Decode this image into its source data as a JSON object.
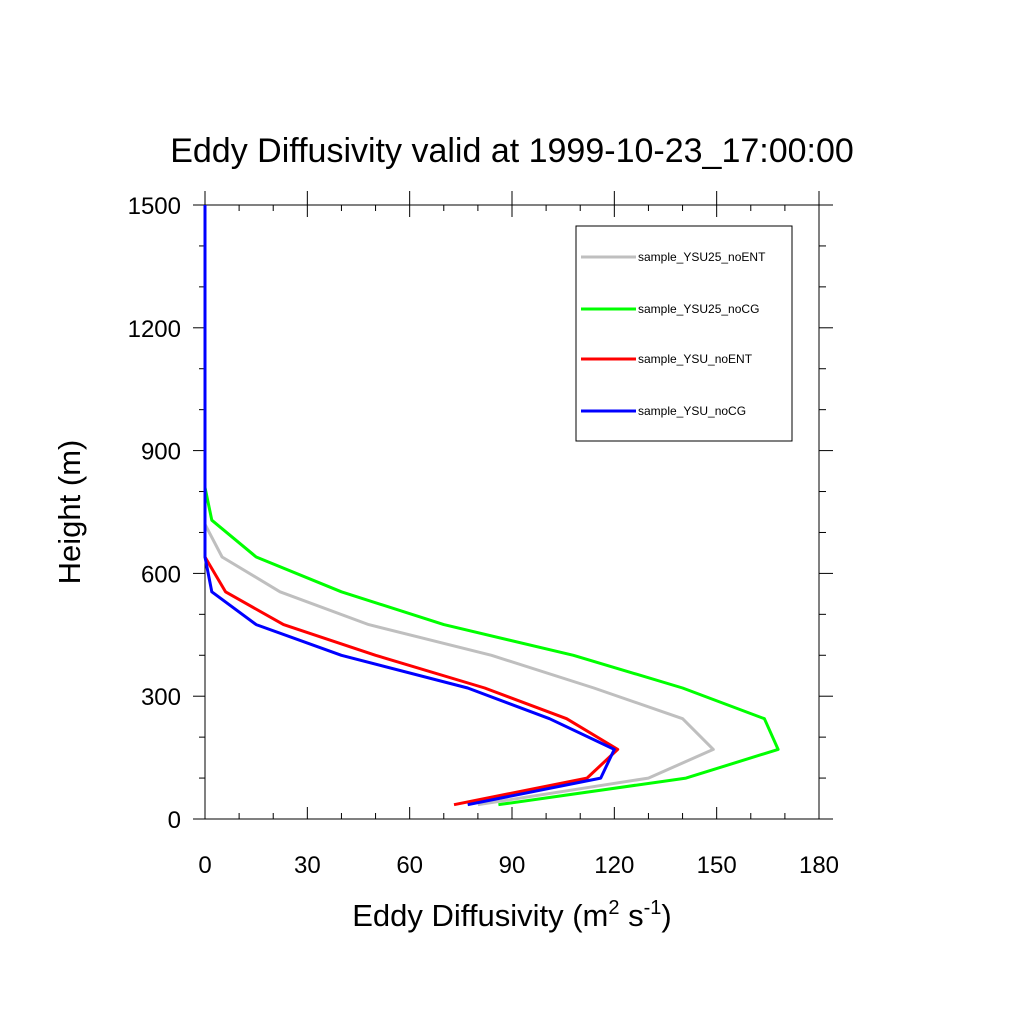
{
  "chart_data": {
    "type": "line",
    "title": "Eddy Diffusivity valid at 1999-10-23_17:00:00",
    "xlabel": "Eddy Diffusivity (m",
    "xlabel_sup1": "2",
    "xlabel_mid": " s",
    "xlabel_sup2": "-1",
    "xlabel_end": ")",
    "ylabel": "Height (m)",
    "xlim": [
      0,
      180
    ],
    "ylim": [
      0,
      1500
    ],
    "x_ticks": [
      "0",
      "30",
      "60",
      "90",
      "120",
      "150",
      "180"
    ],
    "y_ticks": [
      "0",
      "300",
      "600",
      "900",
      "1200",
      "1500"
    ],
    "legend_position": "top-right",
    "series": [
      {
        "name": "sample_YSU25_noENT",
        "color": "#bfbfbf",
        "points": [
          [
            80,
            35
          ],
          [
            130,
            100
          ],
          [
            149,
            170
          ],
          [
            140,
            245
          ],
          [
            114,
            320
          ],
          [
            84,
            400
          ],
          [
            48,
            475
          ],
          [
            22,
            555
          ],
          [
            5,
            640
          ],
          [
            0,
            720
          ],
          [
            0,
            800
          ],
          [
            0,
            1500
          ]
        ]
      },
      {
        "name": "sample_YSU25_noCG",
        "color": "#00ff00",
        "points": [
          [
            86,
            35
          ],
          [
            141,
            100
          ],
          [
            168,
            170
          ],
          [
            164,
            245
          ],
          [
            140,
            320
          ],
          [
            108,
            400
          ],
          [
            70,
            475
          ],
          [
            40,
            555
          ],
          [
            15,
            640
          ],
          [
            2,
            730
          ],
          [
            0,
            810
          ],
          [
            0,
            1500
          ]
        ]
      },
      {
        "name": "sample_YSU_noENT",
        "color": "#ff0000",
        "points": [
          [
            73,
            35
          ],
          [
            112,
            100
          ],
          [
            121,
            170
          ],
          [
            106,
            245
          ],
          [
            82,
            320
          ],
          [
            50,
            400
          ],
          [
            23,
            475
          ],
          [
            6,
            555
          ],
          [
            0,
            640
          ],
          [
            0,
            720
          ],
          [
            0,
            1500
          ]
        ]
      },
      {
        "name": "sample_YSU_noCG",
        "color": "#0000ff",
        "points": [
          [
            77,
            35
          ],
          [
            116,
            100
          ],
          [
            120,
            170
          ],
          [
            101,
            245
          ],
          [
            77,
            320
          ],
          [
            40,
            400
          ],
          [
            15,
            475
          ],
          [
            2,
            555
          ],
          [
            0,
            640
          ],
          [
            0,
            720
          ],
          [
            0,
            1500
          ]
        ]
      }
    ]
  }
}
